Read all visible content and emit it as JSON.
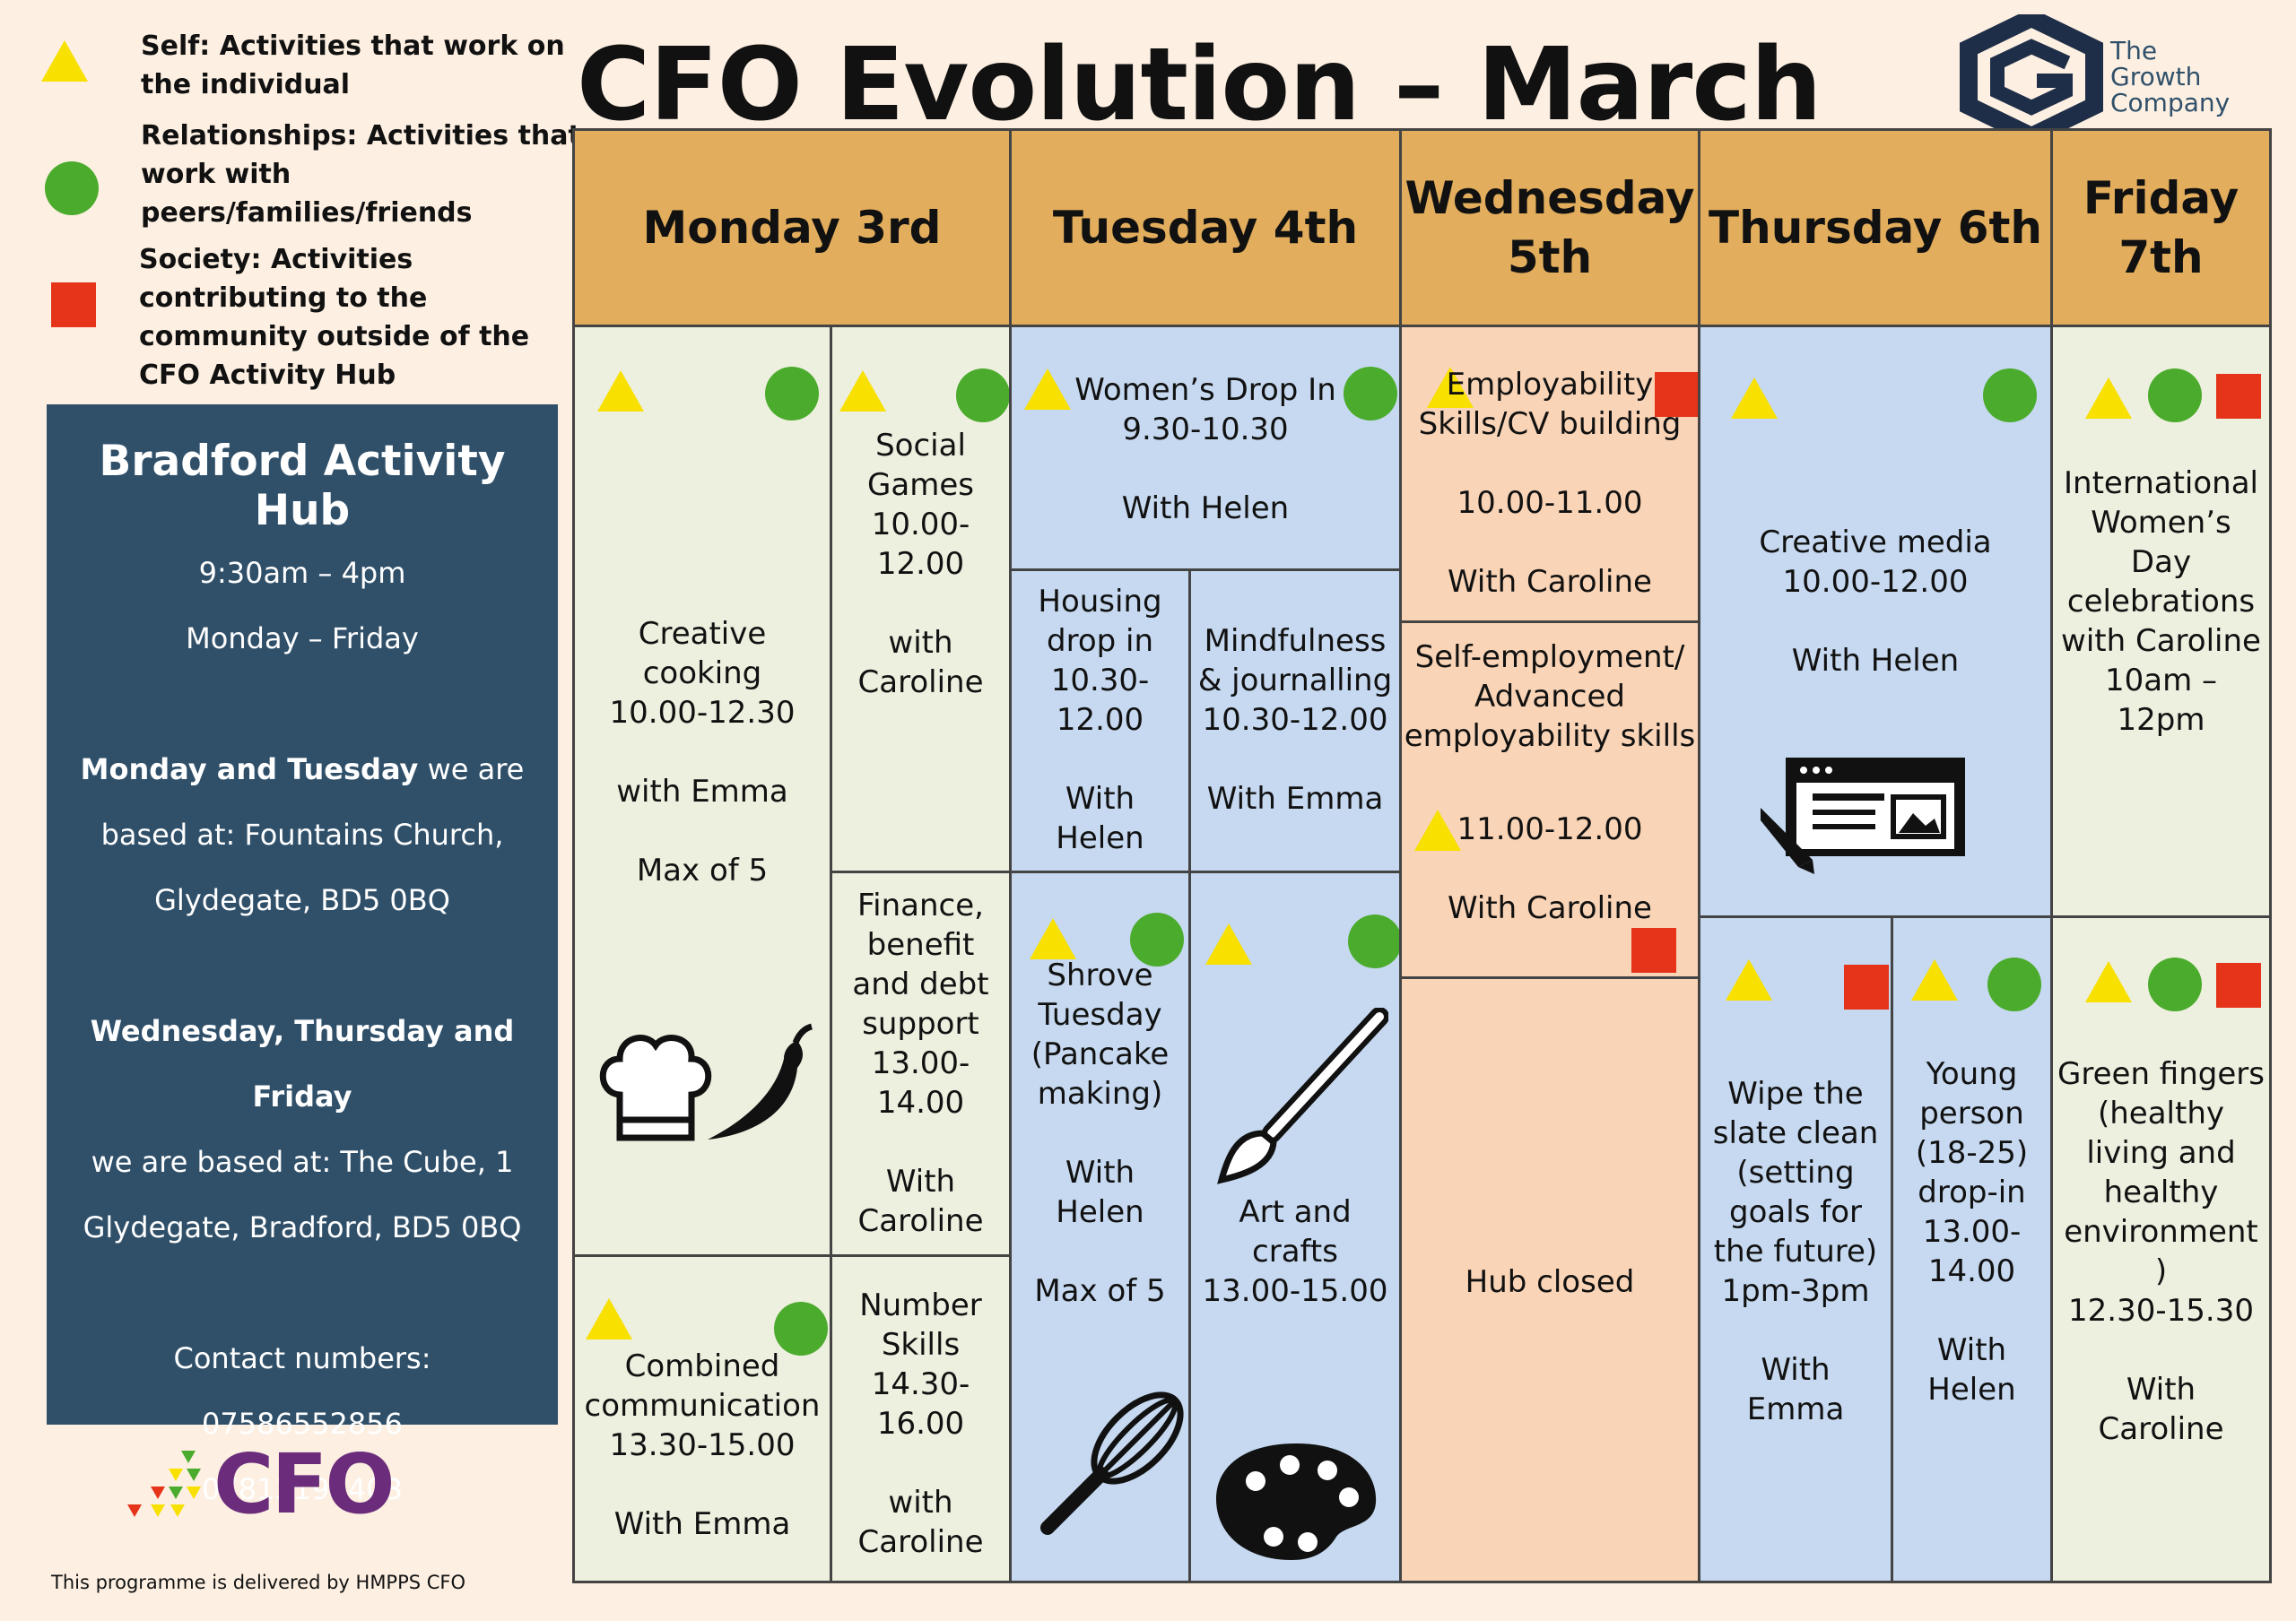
{
  "title": "CFO Evolution – March",
  "logo": {
    "line1": "The",
    "line2": "Growth",
    "line3": "Company"
  },
  "legend": {
    "self": "Self: Activities that work on\nthe individual",
    "relationships": "Relationships: Activities that\nwork with\npeers/families/friends",
    "society": "Society: Activities\ncontributing to the\ncommunity outside of the\nCFO Activity Hub"
  },
  "hub": {
    "title": "Bradford Activity Hub",
    "hours": "9:30am – 4pm",
    "days": "Monday – Friday",
    "mt_bold": "Monday and Tuesday",
    "mt_rest": " we are",
    "mt_line2": "based at: Fountains Church,",
    "mt_line3": "Glydegate, BD5 0BQ",
    "wtf_bold": "Wednesday, Thursday and Friday",
    "wtf_line2": "we are based at: The Cube, 1",
    "wtf_line3": "Glydegate, Bradford, BD5 0BQ",
    "contact_label": "Contact numbers:",
    "phone1": "07586552856",
    "phone2": "07813197403"
  },
  "cfo_logo": "CFO",
  "footer": "This programme is delivered by HMPPS CFO",
  "days": {
    "mon": "Monday 3rd",
    "tue": "Tuesday 4th",
    "wed": "Wednesday\n5th",
    "thu": "Thursday 6th",
    "fri": "Friday\n7th"
  },
  "sessions": {
    "mon_cooking": "Creative\ncooking\n10.00-12.30\n\nwith Emma\n\nMax of 5",
    "mon_social": "Social\nGames\n10.00-\n12.00\n\nwith\nCaroline",
    "mon_finance": "Finance,\nbenefit\nand debt\nsupport\n13.00-\n14.00\n\nWith\nCaroline",
    "mon_comm": "Combined\ncommunication\n13.30-15.00\n\nWith Emma",
    "mon_number": "Number\nSkills\n14.30-\n16.00\n\nwith\nCaroline",
    "tue_women": "Women’s Drop In\n9.30-10.30\n\nWith Helen",
    "tue_housing": "Housing\ndrop in\n10.30-\n12.00\n\nWith\nHelen",
    "tue_mind": "Mindfulness\n& journalling\n10.30-12.00\n\nWith Emma",
    "tue_shrove": "Shrove\nTuesday\n(Pancake\nmaking)\n\nWith\nHelen\n\nMax of 5",
    "tue_art": "Art and\ncrafts\n13.00-15.00",
    "wed_emp": "Employability\nSkills/CV building\n\n10.00-11.00\n\nWith Caroline",
    "wed_self_a": "Self-employment/\nAdvanced\nemployability skills",
    "wed_self_b": "11.00-12.00\n\nWith Caroline",
    "wed_closed": "Hub closed",
    "thu_media": "Creative media\n10.00-12.00\n\nWith Helen",
    "thu_wipe": "Wipe the\nslate clean\n(setting\ngoals for\nthe future)\n1pm-3pm\n\nWith\nEmma",
    "thu_young": "Young\nperson\n(18-25)\ndrop-in\n13.00-\n14.00\n\nWith\nHelen",
    "fri_intl": "International\nWomen’s\nDay\ncelebrations\nwith Caroline\n10am –\n12pm",
    "fri_green": "Green fingers\n(healthy\nliving and\nhealthy\nenvironment\n)\n12.30-15.30\n\nWith\nCaroline"
  },
  "colors": {
    "self": "#f8e000",
    "relationships": "#4bab2c",
    "society": "#e53419",
    "header": "#e2ad5c",
    "hub": "#30506a"
  }
}
